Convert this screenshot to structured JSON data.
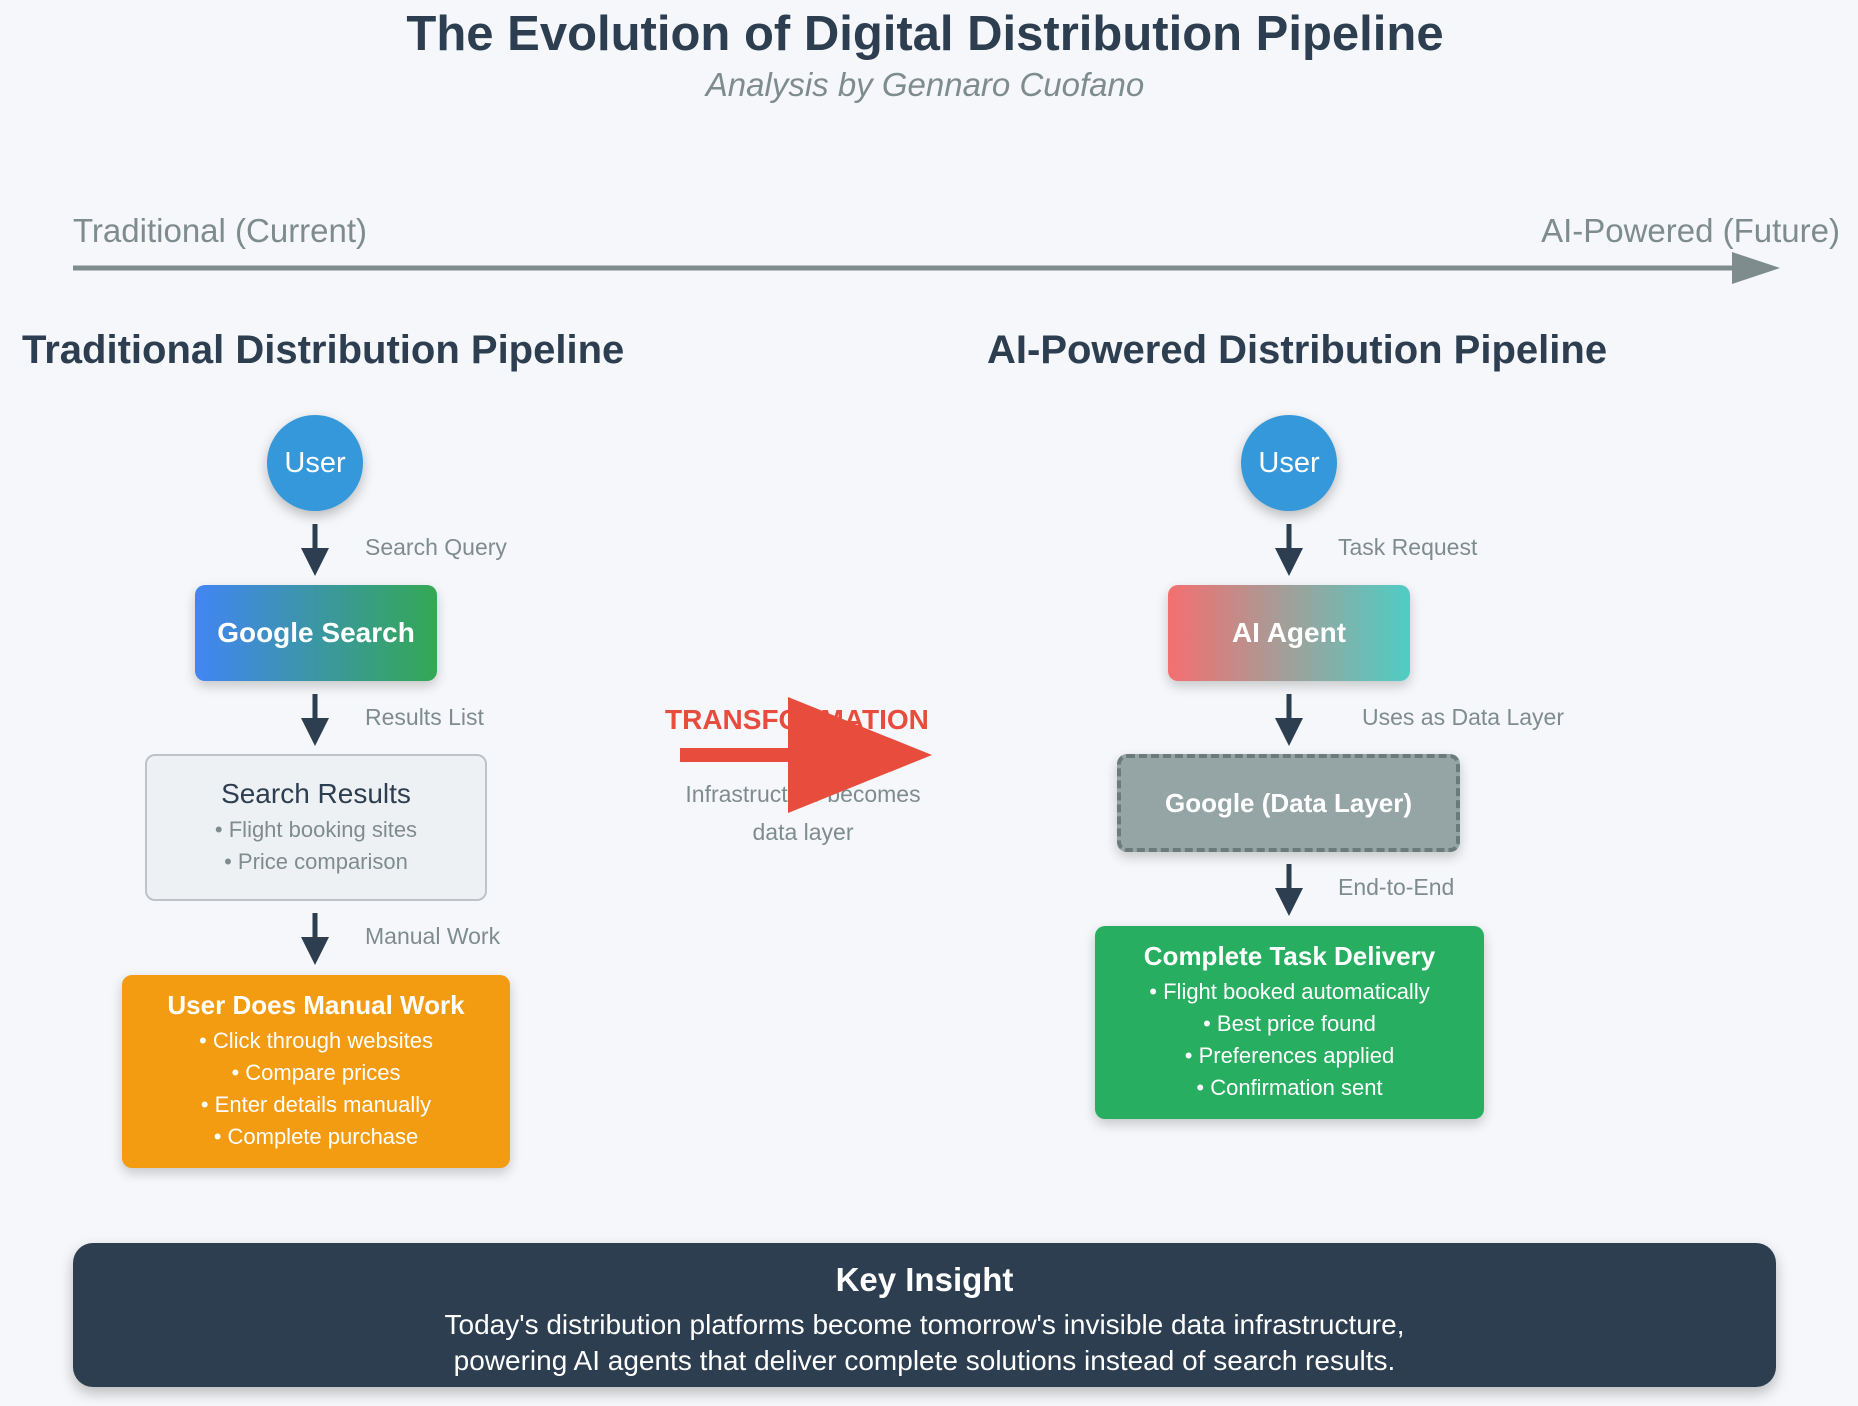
{
  "header": {
    "title": "The Evolution of Digital Distribution Pipeline",
    "subtitle": "Analysis by Gennaro Cuofano"
  },
  "timeline": {
    "left_label": "Traditional (Current)",
    "right_label": "AI-Powered (Future)"
  },
  "traditional": {
    "title": "Traditional Distribution Pipeline",
    "user": "User",
    "label_search_query": "Search Query",
    "google_search": "Google Search",
    "label_results_list": "Results List",
    "results_title": "Search Results",
    "results_bullets": [
      "• Flight booking sites",
      "• Price comparison"
    ],
    "label_manual_work": "Manual Work",
    "manual_title": "User Does Manual Work",
    "manual_bullets": [
      "• Click through websites",
      "• Compare prices",
      "• Enter details manually",
      "• Complete purchase"
    ]
  },
  "transformation": {
    "label": "TRANSFORMATION",
    "sub_line1": "Infrastructure becomes",
    "sub_line2": "data layer"
  },
  "ai": {
    "title": "AI-Powered Distribution Pipeline",
    "user": "User",
    "label_task_request": "Task Request",
    "agent": "AI Agent",
    "label_data_layer": "Uses as Data Layer",
    "google_data_layer": "Google (Data Layer)",
    "label_end_to_end": "End-to-End",
    "delivery_title": "Complete Task Delivery",
    "delivery_bullets": [
      "• Flight booked automatically",
      "• Best price found",
      "• Preferences applied",
      "• Confirmation sent"
    ]
  },
  "insight": {
    "title": "Key Insight",
    "line1": "Today's distribution platforms become tomorrow's invisible data infrastructure,",
    "line2": "powering AI agents that deliver complete solutions instead of search results."
  },
  "colors": {
    "text_dark": "#2c3e50",
    "text_muted": "#7f8c8d",
    "user_blue": "#3498db",
    "manual_orange": "#f39c12",
    "delivery_green": "#27ae60",
    "transform_red": "#e74c3c",
    "data_layer_gray": "#95a5a6"
  }
}
